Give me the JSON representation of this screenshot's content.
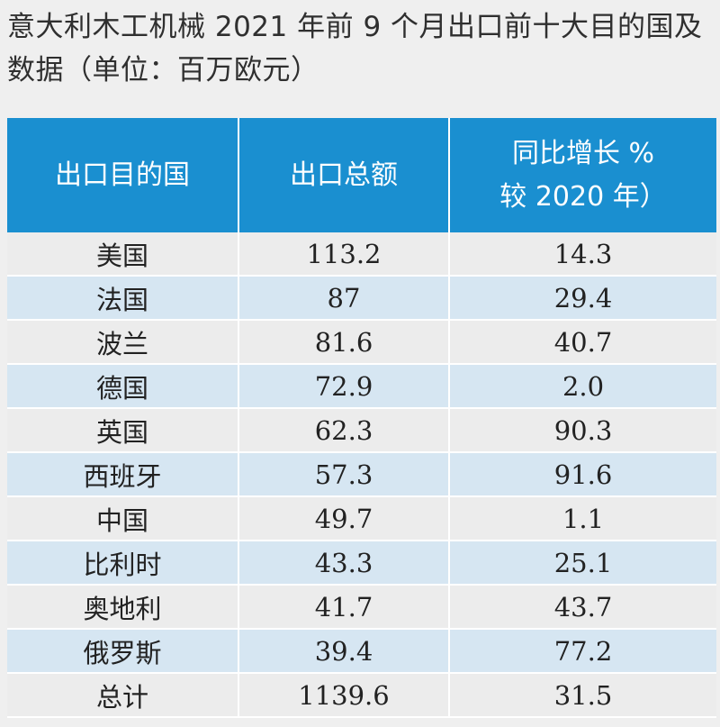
{
  "title": "意大利木工机械 2021 年前 9 个月出口前十大目的国及数据（单位：百万欧元）",
  "colors": {
    "header_bg": "#1a8fd0",
    "row_odd": "#ececec",
    "row_even": "#d6e6f2",
    "background": "#efefef"
  },
  "table": {
    "headers": [
      "出口目的国",
      "出口总额",
      "同比增长 %\n较 2020 年）"
    ],
    "rows": [
      [
        "美国",
        "113.2",
        "14.3"
      ],
      [
        "法国",
        "87",
        "29.4"
      ],
      [
        "波兰",
        "81.6",
        "40.7"
      ],
      [
        "德国",
        "72.9",
        "2.0"
      ],
      [
        "英国",
        "62.3",
        "90.3"
      ],
      [
        "西班牙",
        "57.3",
        "91.6"
      ],
      [
        "中国",
        "49.7",
        "1.1"
      ],
      [
        "比利时",
        "43.3",
        "25.1"
      ],
      [
        "奥地利",
        "41.7",
        "43.7"
      ],
      [
        "俄罗斯",
        "39.4",
        "77.2"
      ],
      [
        "总计",
        "1139.6",
        "31.5"
      ]
    ]
  }
}
